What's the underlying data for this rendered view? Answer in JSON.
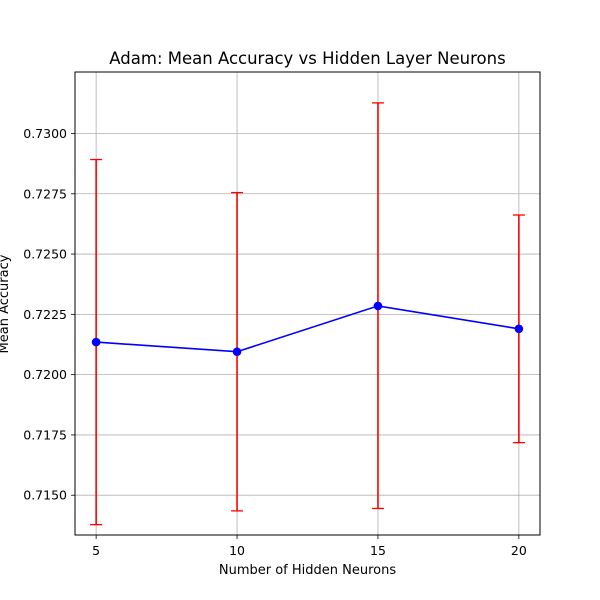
{
  "chart_data": {
    "type": "line",
    "title": "Adam: Mean Accuracy vs Hidden Layer Neurons",
    "xlabel": "Number of Hidden Neurons",
    "ylabel": "Mean Accuracy",
    "x": [
      5,
      10,
      15,
      20
    ],
    "series": [
      {
        "values": [
          0.72135,
          0.72095,
          0.72285,
          0.7219
        ],
        "error_low": [
          0.71378,
          0.71435,
          0.71445,
          0.71718
        ],
        "error_high": [
          0.72892,
          0.72755,
          0.73127,
          0.72662
        ],
        "color": "#0000ff",
        "error_color": "#ff0000"
      }
    ],
    "xticks": [
      "5",
      "10",
      "15",
      "20"
    ],
    "yticks": [
      "0.7150",
      "0.7175",
      "0.7200",
      "0.7225",
      "0.7250",
      "0.7275",
      "0.7300"
    ],
    "xlim": [
      4.25,
      20.75
    ],
    "ylim": [
      0.71335,
      0.73255
    ],
    "grid": true,
    "legend": "none"
  }
}
